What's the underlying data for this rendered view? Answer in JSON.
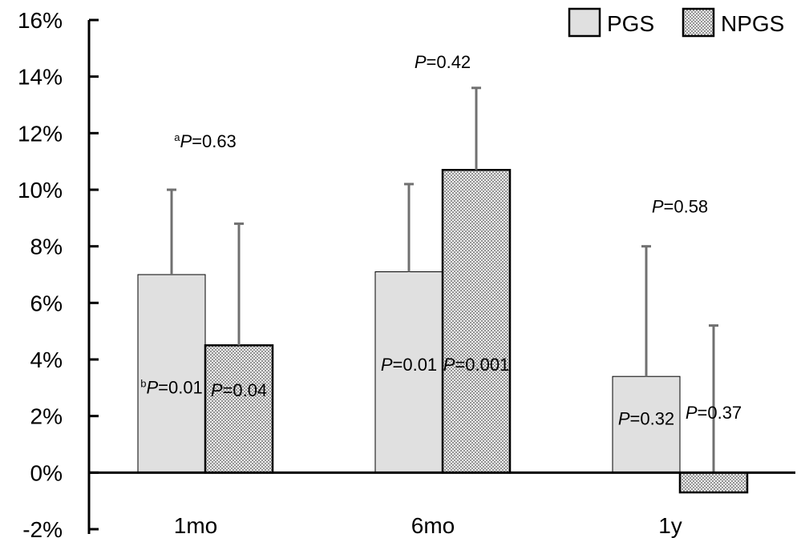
{
  "chart_data": {
    "type": "bar",
    "title": "",
    "xlabel": "",
    "ylabel": "",
    "categories": [
      "1mo",
      "6mo",
      "1y"
    ],
    "series": [
      {
        "name": "PGS",
        "values": [
          7.0,
          7.1,
          3.4
        ],
        "error_upper": [
          10.0,
          10.2,
          8.0
        ],
        "fill": "#e0e0e0",
        "pattern": "solid"
      },
      {
        "name": "NPGS",
        "values": [
          4.5,
          10.7,
          -0.7
        ],
        "error_upper": [
          8.8,
          13.6,
          5.2
        ],
        "fill": "#b9b9b9",
        "pattern": "dotted"
      }
    ],
    "ylim": [
      -2,
      16
    ],
    "yticks": [
      -2,
      0,
      2,
      4,
      6,
      8,
      10,
      12,
      14,
      16
    ],
    "ytick_labels": [
      "-2%",
      "0%",
      "2%",
      "4%",
      "6%",
      "8%",
      "10%",
      "12%",
      "14%",
      "16%"
    ],
    "grid": false,
    "legend_position": "top-right",
    "annotations": [
      {
        "prefix": "a",
        "label": "P",
        "text": "=0.63",
        "category": 0,
        "anchor": "between",
        "y": 11.5
      },
      {
        "prefix": "b",
        "label": "P",
        "text": "=0.01",
        "category": 0,
        "series": 0,
        "y": 2.8
      },
      {
        "prefix": "",
        "label": "P",
        "text": "=0.04",
        "category": 0,
        "series": 1,
        "y": 2.7
      },
      {
        "prefix": "",
        "label": "P",
        "text": "=0.42",
        "category": 1,
        "anchor": "between",
        "y": 14.3
      },
      {
        "prefix": "",
        "label": "P",
        "text": "=0.01",
        "category": 1,
        "series": 0,
        "y": 3.6
      },
      {
        "prefix": "",
        "label": "P",
        "text": "=0.001",
        "category": 1,
        "series": 1,
        "y": 3.6
      },
      {
        "prefix": "",
        "label": "P",
        "text": "=0.58",
        "category": 2,
        "anchor": "between",
        "y": 9.2
      },
      {
        "prefix": "",
        "label": "P",
        "text": "=0.32",
        "category": 2,
        "series": 0,
        "y": 1.7
      },
      {
        "prefix": "",
        "label": "P",
        "text": "=0.37",
        "category": 2,
        "series": 1,
        "y": 1.9
      }
    ],
    "colors": {
      "axis": "#000000",
      "error_bar": "#707070",
      "bar_stroke": "#000000"
    }
  }
}
